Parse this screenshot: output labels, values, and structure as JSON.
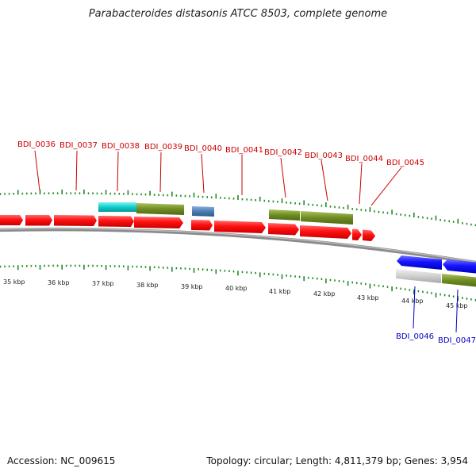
{
  "title": "Parabacteroides distasonis ATCC 8503, complete genome",
  "footer": {
    "accession": "Accession: NC_009615",
    "summary": "Topology: circular; Length: 4,811,379 bp; Genes: 3,954"
  },
  "colors": {
    "forward_label": "#cc0000",
    "reverse_label": "#0000cc",
    "cds": "#ff1111",
    "cds_reverse": "#1a1aff",
    "tick": "#228822",
    "backbone": "#888888"
  },
  "kbp_ticks": [
    {
      "label": "35 kbp",
      "kb": 35
    },
    {
      "label": "36 kbp",
      "kb": 36
    },
    {
      "label": "37 kbp",
      "kb": 37
    },
    {
      "label": "38 kbp",
      "kb": 38
    },
    {
      "label": "39 kbp",
      "kb": 39
    },
    {
      "label": "40 kbp",
      "kb": 40
    },
    {
      "label": "41 kbp",
      "kb": 41
    },
    {
      "label": "42 kbp",
      "kb": 42
    },
    {
      "label": "43 kbp",
      "kb": 43
    },
    {
      "label": "44 kbp",
      "kb": 44
    },
    {
      "label": "45 kbp",
      "kb": 45
    }
  ],
  "gene_labels": [
    {
      "name": "BDI_0036",
      "strand": "forward"
    },
    {
      "name": "BDI_0037",
      "strand": "forward"
    },
    {
      "name": "BDI_0038",
      "strand": "forward"
    },
    {
      "name": "BDI_0039",
      "strand": "forward"
    },
    {
      "name": "BDI_0040",
      "strand": "forward"
    },
    {
      "name": "BDI_0041",
      "strand": "forward"
    },
    {
      "name": "BDI_0042",
      "strand": "forward"
    },
    {
      "name": "BDI_0043",
      "strand": "forward"
    },
    {
      "name": "BDI_0044",
      "strand": "forward"
    },
    {
      "name": "BDI_0045",
      "strand": "forward"
    },
    {
      "name": "BDI_0046",
      "strand": "reverse"
    },
    {
      "name": "BDI_0047",
      "strand": "reverse"
    }
  ]
}
